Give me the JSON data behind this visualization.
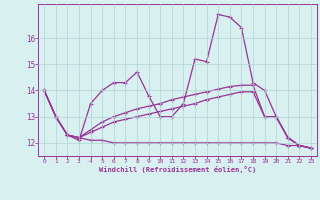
{
  "xlabel": "Windchill (Refroidissement éolien,°C)",
  "x": [
    0,
    1,
    2,
    3,
    4,
    5,
    6,
    7,
    8,
    9,
    10,
    11,
    12,
    13,
    14,
    15,
    16,
    17,
    18,
    19,
    20,
    21,
    22,
    23
  ],
  "line1": [
    14.0,
    13.0,
    12.3,
    12.1,
    13.5,
    14.0,
    14.3,
    14.3,
    14.7,
    13.8,
    13.0,
    13.0,
    13.5,
    15.2,
    15.1,
    16.9,
    16.8,
    16.4,
    14.3,
    14.0,
    13.0,
    12.2,
    11.9,
    11.8
  ],
  "line2": [
    14.0,
    13.0,
    12.3,
    12.2,
    12.1,
    12.1,
    12.0,
    12.0,
    12.0,
    12.0,
    12.0,
    12.0,
    12.0,
    12.0,
    12.0,
    12.0,
    12.0,
    12.0,
    12.0,
    12.0,
    12.0,
    11.9,
    11.9,
    11.8
  ],
  "line3": [
    14.0,
    13.0,
    12.3,
    12.2,
    12.4,
    12.6,
    12.8,
    12.9,
    13.0,
    13.1,
    13.2,
    13.3,
    13.4,
    13.5,
    13.65,
    13.75,
    13.85,
    13.95,
    13.95,
    13.0,
    13.0,
    12.2,
    11.9,
    11.8
  ],
  "line4": [
    14.0,
    13.0,
    12.3,
    12.2,
    12.5,
    12.8,
    13.0,
    13.15,
    13.3,
    13.4,
    13.5,
    13.65,
    13.75,
    13.85,
    13.95,
    14.05,
    14.15,
    14.2,
    14.2,
    13.0,
    13.0,
    12.2,
    11.9,
    11.8
  ],
  "line_color": "#993399",
  "bg_color": "#d8f0f0",
  "grid_color": "#b0d4d4",
  "ylim": [
    11.5,
    17.3
  ],
  "xlim": [
    -0.5,
    23.5
  ]
}
